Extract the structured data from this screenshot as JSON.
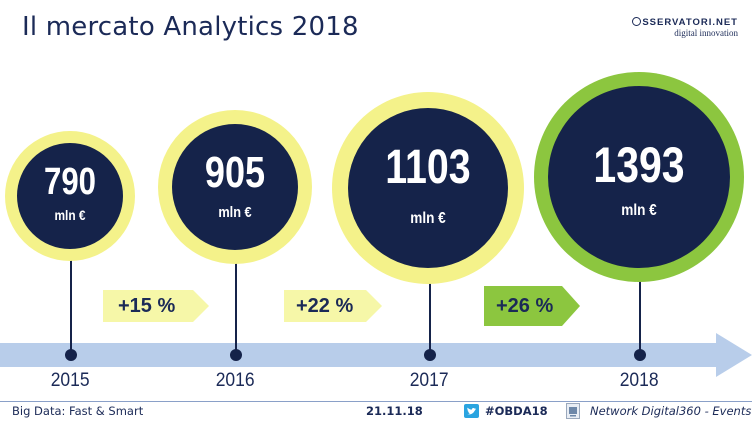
{
  "title": "Il mercato Analytics 2018",
  "logo": {
    "top": "SSERVATORI.NET",
    "bottom": "digital innovation"
  },
  "bubbles": [
    {
      "value": "790",
      "unit": "mln €",
      "year": "2015"
    },
    {
      "value": "905",
      "unit": "mln €",
      "year": "2016"
    },
    {
      "value": "1103",
      "unit": "mln €",
      "year": "2017"
    },
    {
      "value": "1393",
      "unit": "mln €",
      "year": "2018"
    }
  ],
  "growth": [
    {
      "label": "+15 %",
      "color": "#f6f7a8"
    },
    {
      "label": "+22 %",
      "color": "#f6f7a8"
    },
    {
      "label": "+26 %",
      "color": "#8cc63f"
    }
  ],
  "colors": {
    "navy": "#15234a",
    "ring_yellow": "#f4f28a",
    "ring_green": "#8cc63f",
    "arrow_blue": "#b8cdea"
  },
  "footer": {
    "left": "Big Data: Fast & Smart",
    "date": "21.11.18",
    "hashtag": "#OBDA18",
    "right": "Network Digital360 - Events"
  },
  "icons": [
    "twitter-icon",
    "network-digital360-icon"
  ]
}
